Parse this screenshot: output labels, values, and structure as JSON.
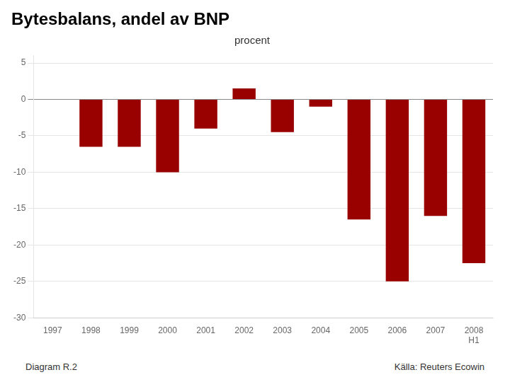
{
  "chart_data": {
    "type": "bar",
    "title": "Bytesbalans, andel av BNP",
    "subtitle": "procent",
    "annotations": [
      "Diagram R.2",
      "Källa: Reuters Ecowin"
    ],
    "categories": [
      "1997",
      "1998",
      "1999",
      "2000",
      "2001",
      "2002",
      "2003",
      "2004",
      "2005",
      "2006",
      "2007",
      "2008\nH1"
    ],
    "values": [
      0.0,
      -6.5,
      -6.5,
      -10.0,
      -4.0,
      1.5,
      -4.5,
      -1.0,
      -16.5,
      -25.0,
      -16.0,
      -22.5
    ],
    "color": "#990000",
    "ylim": [
      -30,
      6
    ],
    "yticks": [
      5,
      0,
      -5,
      -10,
      -15,
      -20,
      -25,
      -30
    ],
    "grid": true
  }
}
